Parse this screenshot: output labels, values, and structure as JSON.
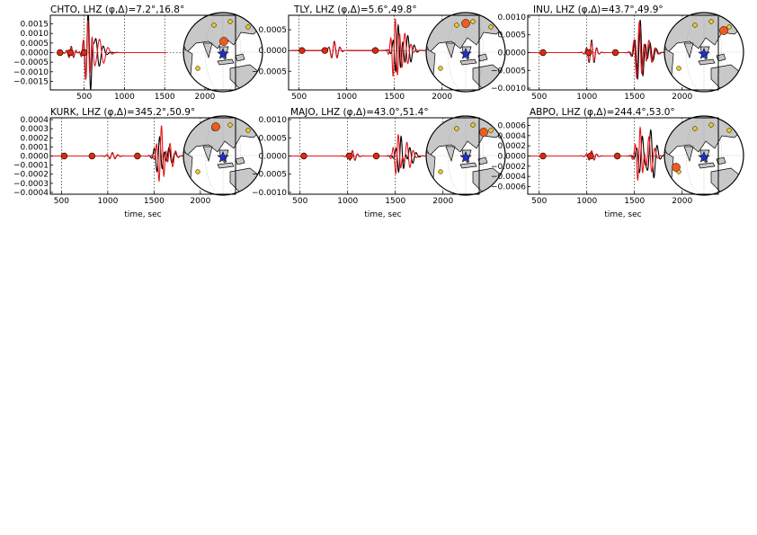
{
  "figure": {
    "x_axis_label": "time, sec",
    "colors": {
      "data": "#000000",
      "synthetic": "#e8161b",
      "arrival_marker": "#e0280f",
      "star": "#1f2fc8",
      "station_large": "#f05a1e",
      "station_small": "#f5c518",
      "land": "#c8c8c8",
      "ocean": "#ffffff"
    },
    "icons": [
      "globe-inset-icon",
      "epicenter-star-icon",
      "station-marker-icon"
    ]
  },
  "chart_data": [
    {
      "type": "line",
      "title": "CHTO, LHZ (φ,Δ)=7.2°,16.8°",
      "xlim": [
        80,
        2380
      ],
      "ylim": [
        -0.00195,
        0.00195
      ],
      "xticks": [
        500,
        1000,
        1500,
        2000
      ],
      "xtick_labels": [
        "500",
        "1000",
        "1500",
        "2000"
      ],
      "yticks": [
        -0.0015,
        -0.001,
        -0.0005,
        0,
        0.0005,
        0.001,
        0.0015
      ],
      "ytick_labels": [
        "−0.0015",
        "−0.0010",
        "−0.0005",
        "0.0000",
        "0.0005",
        "0.0010",
        "0.0015"
      ],
      "show_xlabel": false,
      "markers_x": [
        200,
        330,
        500
      ],
      "series": [
        {
          "role": "data",
          "window": [
            180,
            1520
          ],
          "wavelets": [
            [
              340,
              0.00032,
              60
            ],
            [
              550,
              0.00185,
              60
            ],
            [
              640,
              0.0009,
              100
            ]
          ]
        },
        {
          "role": "synthetic",
          "window": [
            180,
            1520
          ],
          "wavelets": [
            [
              340,
              0.00028,
              60
            ],
            [
              545,
              0.0017,
              58
            ],
            [
              690,
              0.0007,
              110
            ]
          ]
        }
      ]
    },
    {
      "type": "line",
      "title": "TLY, LHZ (φ,Δ)=5.6°,49.8°",
      "xlim": [
        390,
        2390
      ],
      "ylim": [
        -0.00095,
        0.00085
      ],
      "xticks": [
        500,
        1000,
        1500,
        2000
      ],
      "xtick_labels": [
        "500",
        "1000",
        "1500",
        "2000"
      ],
      "yticks": [
        -0.0005,
        0,
        0.0005
      ],
      "ytick_labels": [
        "−0.0005",
        "0.0000",
        "0.0005"
      ],
      "show_xlabel": false,
      "markers_x": [
        530,
        770,
        1300
      ],
      "series": [
        {
          "role": "data",
          "window": [
            420,
            1840
          ],
          "wavelets": [
            [
              870,
              0.00022,
              60
            ],
            [
              1540,
              0.00065,
              55
            ],
            [
              1640,
              0.00035,
              70
            ]
          ]
        },
        {
          "role": "synthetic",
          "window": [
            420,
            1840
          ],
          "wavelets": [
            [
              870,
              0.0002,
              60
            ],
            [
              1510,
              0.0008,
              50
            ],
            [
              1610,
              0.0004,
              65
            ]
          ]
        }
      ]
    },
    {
      "type": "line",
      "title": "INU, LHZ (φ,Δ)=43.7°,49.9°",
      "xlim": [
        380,
        2380
      ],
      "ylim": [
        -0.00105,
        0.00105
      ],
      "xticks": [
        500,
        1000,
        1500,
        2000
      ],
      "xtick_labels": [
        "500",
        "1000",
        "1500",
        "2000"
      ],
      "yticks": [
        -0.001,
        -0.0005,
        0,
        0.0005,
        0.001
      ],
      "ytick_labels": [
        "−0.0010",
        "−0.0005",
        "0.0000",
        "0.0005",
        "0.0010"
      ],
      "show_xlabel": false,
      "markers_x": [
        540,
        1020,
        1300
      ],
      "series": [
        {
          "role": "data",
          "window": [
            400,
            1840
          ],
          "wavelets": [
            [
              1050,
              0.00035,
              55
            ],
            [
              1560,
              0.00095,
              60
            ],
            [
              1660,
              0.0003,
              70
            ]
          ]
        },
        {
          "role": "synthetic",
          "window": [
            400,
            1840
          ],
          "wavelets": [
            [
              1050,
              0.0003,
              55
            ],
            [
              1550,
              0.0009,
              58
            ],
            [
              1650,
              0.00035,
              70
            ]
          ]
        }
      ]
    },
    {
      "type": "line",
      "title": "KURK, LHZ (φ,Δ)=345.2°,50.9°",
      "xlim": [
        380,
        2380
      ],
      "ylim": [
        -0.00042,
        0.00042
      ],
      "xticks": [
        500,
        1000,
        1500,
        2000
      ],
      "xtick_labels": [
        "500",
        "1000",
        "1500",
        "2000"
      ],
      "yticks": [
        -0.0004,
        -0.0003,
        -0.0002,
        -0.0001,
        0,
        0.0001,
        0.0002,
        0.0003,
        0.0004
      ],
      "ytick_labels": [
        "−0.0004",
        "−0.0003",
        "−0.0002",
        "−0.0001",
        "0.0000",
        "0.0001",
        "0.0002",
        "0.0003",
        "0.0004"
      ],
      "show_xlabel": true,
      "markers_x": [
        530,
        830,
        1320
      ],
      "series": [
        {
          "role": "data",
          "window": [
            400,
            1840
          ],
          "wavelets": [
            [
              1050,
              3e-05,
              60
            ],
            [
              1560,
              0.00022,
              60
            ],
            [
              1660,
              0.0001,
              70
            ]
          ]
        },
        {
          "role": "synthetic",
          "window": [
            400,
            1840
          ],
          "wavelets": [
            [
              1050,
              4e-05,
              60
            ],
            [
              1580,
              0.00035,
              55
            ],
            [
              1670,
              0.00015,
              65
            ]
          ]
        }
      ]
    },
    {
      "type": "line",
      "title": "MAJO, LHZ (φ,Δ)=43.0°,51.4°",
      "xlim": [
        380,
        2380
      ],
      "ylim": [
        -0.00105,
        0.00105
      ],
      "xticks": [
        500,
        1000,
        1500,
        2000
      ],
      "xtick_labels": [
        "500",
        "1000",
        "1500",
        "2000"
      ],
      "yticks": [
        -0.001,
        -0.0005,
        0,
        0.0005,
        0.001
      ],
      "ytick_labels": [
        "−0.0010",
        "−0.0005",
        "0.0000",
        "0.0005",
        "0.0010"
      ],
      "show_xlabel": true,
      "markers_x": [
        540,
        1020,
        1300
      ],
      "series": [
        {
          "role": "data",
          "window": [
            400,
            1840
          ],
          "wavelets": [
            [
              1050,
              0.00015,
              55
            ],
            [
              1560,
              0.00055,
              55
            ],
            [
              1650,
              0.00025,
              70
            ]
          ]
        },
        {
          "role": "synthetic",
          "window": [
            400,
            1840
          ],
          "wavelets": [
            [
              1050,
              0.00015,
              55
            ],
            [
              1530,
              0.0006,
              55
            ],
            [
              1620,
              0.0004,
              70
            ]
          ]
        }
      ]
    },
    {
      "type": "line",
      "title": "ABPO, LHZ (φ,Δ)=244.4°,53.0°",
      "xlim": [
        380,
        2380
      ],
      "ylim": [
        -0.00075,
        0.00075
      ],
      "xticks": [
        500,
        1000,
        1500,
        2000
      ],
      "xtick_labels": [
        "500",
        "1000",
        "1500",
        "2000"
      ],
      "yticks": [
        -0.0006,
        -0.0004,
        -0.0002,
        0,
        0.0002,
        0.0004,
        0.0006
      ],
      "ytick_labels": [
        "−0.0006",
        "−0.0004",
        "−0.0002",
        "0.0000",
        "0.0002",
        "0.0004",
        "0.0006"
      ],
      "show_xlabel": true,
      "markers_x": [
        540,
        1040,
        1320
      ],
      "series": [
        {
          "role": "data",
          "window": [
            400,
            1840
          ],
          "wavelets": [
            [
              1050,
              0.0001,
              55
            ],
            [
              1580,
              0.0004,
              60
            ],
            [
              1670,
              0.00055,
              70
            ]
          ]
        },
        {
          "role": "synthetic",
          "window": [
            400,
            1840
          ],
          "wavelets": [
            [
              1050,
              0.0001,
              55
            ],
            [
              1560,
              0.0006,
              55
            ],
            [
              1650,
              0.0004,
              65
            ]
          ]
        }
      ]
    }
  ]
}
